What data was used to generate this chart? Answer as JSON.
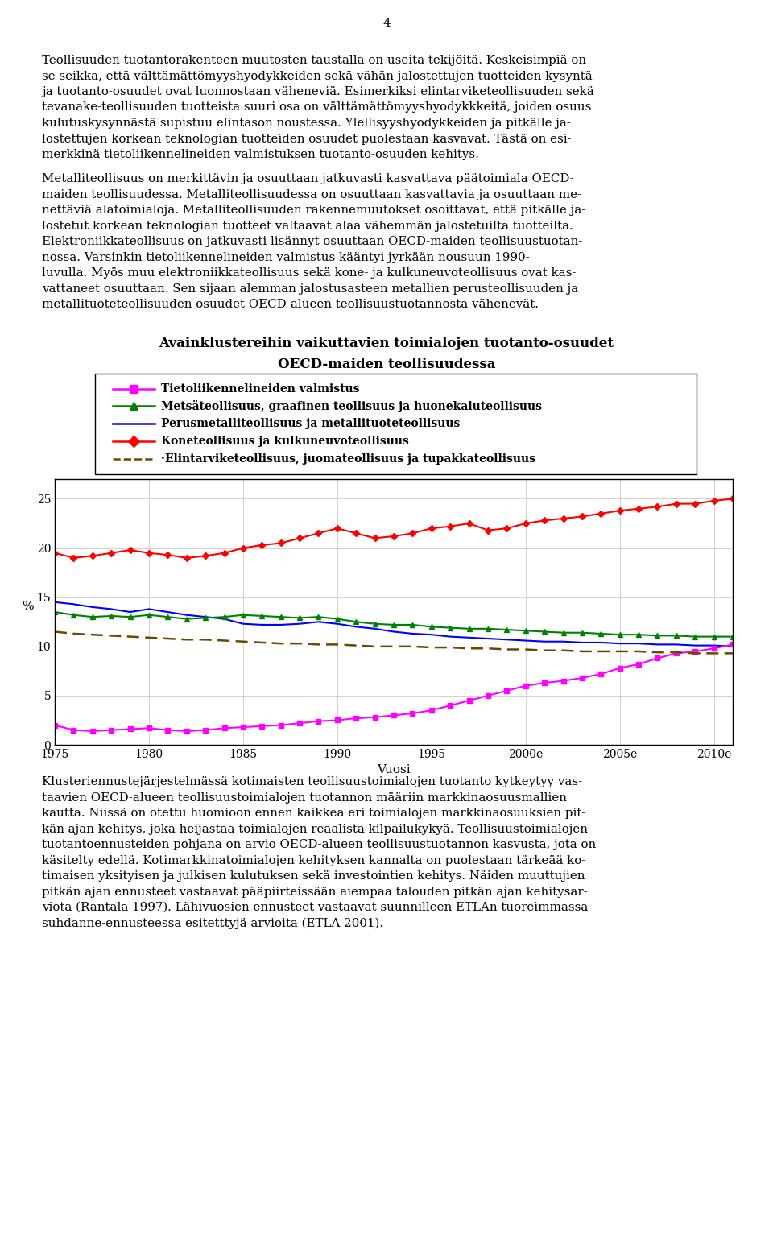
{
  "page_number": "4",
  "para1_lines": [
    "Teollisuuden tuotantorakenteen muutosten taustalla on useita tekijöitä. Keskeisimpiä on",
    "se seikka, että välttämättömyyshyodykkeiden sekä vähän jalostettujen tuotteiden kysyntä-",
    "ja tuotanto-osuudet ovat luonnostaan väheneviä. Esimerkiksi elintarviketeollisuuden sekä",
    "tevanake-teollisuuden tuotteista suuri osa on välttämättömyyshyodykkkeitä, joiden osuus",
    "kulutuskysynnästä supistuu elintason noustessa. Ylellisyyshyodykkeiden ja pitkälle ja-",
    "lostettujen korkean teknologian tuotteiden osuudet puolestaan kasvavat. Tästä on esi-",
    "merkkinä tietoliikennelineiden valmistuksen tuotanto-osuuden kehitys."
  ],
  "para2_lines": [
    "Metalliteollisuus on merkittävin ja osuuttaan jatkuvasti kasvattava päätoimiala OECD-",
    "maiden teollisuudessa. Metalliteollisuudessa on osuuttaan kasvattavia ja osuuttaan me-",
    "nettäviä alatoimialoja. Metalliteollisuuden rakennemuutokset osoittavat, että pitkälle ja-",
    "lostetut korkean teknologian tuotteet valtaavat alaa vähemmän jalostetuilta tuotteilta.",
    "Elektroniikkateollisuus on jatkuvasti lisännyt osuuttaan OECD-maiden teollisuustuotan-",
    "nossa. Varsinkin tietoliikennelineiden valmistus kääntyi jyrkään nousuun 1990-",
    "luvulla. Myös muu elektroniikkateollisuus sekä kone- ja kulkuneuvoteollisuus ovat kas-",
    "vattaneet osuuttaan. Sen sijaan alemman jalostusasteen metallien perusteollisuuden ja",
    "metallituoteteollisuuden osuudet OECD-alueen teollisuustuotannosta vähenevät."
  ],
  "chart_title_line1": "Avainklustereihin vaikuttavien toimialojen tuotanto-osuudet",
  "chart_title_line2": "OECD-maiden teollisuudessa",
  "legend_items": [
    {
      "label": "Tietoliikennelineiden valmistus",
      "color": "#FF00FF",
      "ls": "-",
      "marker": "s"
    },
    {
      "label": "Metsäteollisuus, graafinen teollisuus ja huonekaluteollisuus",
      "color": "#008000",
      "ls": "-",
      "marker": "^"
    },
    {
      "label": "Perusmetalliteollisuus ja metallituoteteollisuus",
      "color": "#0000FF",
      "ls": "-",
      "marker": null
    },
    {
      "label": "Koneteollisuus ja kulkuneuvoteollisuus",
      "color": "#FF0000",
      "ls": "-",
      "marker": "D"
    },
    {
      "label": "·Elintarviketeollisuus, juomateollisuus ja tupakkateollisuus",
      "color": "#6B4800",
      "ls": "--",
      "marker": null
    }
  ],
  "years": [
    1975,
    1976,
    1977,
    1978,
    1979,
    1980,
    1981,
    1982,
    1983,
    1984,
    1985,
    1986,
    1987,
    1988,
    1989,
    1990,
    1991,
    1992,
    1993,
    1994,
    1995,
    1996,
    1997,
    1998,
    1999,
    2000,
    2001,
    2002,
    2003,
    2004,
    2005,
    2006,
    2007,
    2008,
    2009,
    2010,
    2011
  ],
  "tieto": [
    2.0,
    1.5,
    1.4,
    1.5,
    1.6,
    1.7,
    1.5,
    1.4,
    1.5,
    1.7,
    1.8,
    1.9,
    2.0,
    2.2,
    2.4,
    2.5,
    2.7,
    2.8,
    3.0,
    3.2,
    3.5,
    4.0,
    4.5,
    5.0,
    5.5,
    6.0,
    6.3,
    6.5,
    6.8,
    7.2,
    7.8,
    8.2,
    8.8,
    9.3,
    9.5,
    9.8,
    10.2
  ],
  "metsa": [
    13.5,
    13.2,
    13.0,
    13.1,
    13.0,
    13.2,
    13.0,
    12.8,
    12.9,
    13.0,
    13.2,
    13.1,
    13.0,
    12.9,
    13.0,
    12.8,
    12.5,
    12.3,
    12.2,
    12.2,
    12.0,
    11.9,
    11.8,
    11.8,
    11.7,
    11.6,
    11.5,
    11.4,
    11.4,
    11.3,
    11.2,
    11.2,
    11.1,
    11.1,
    11.0,
    11.0,
    11.0
  ],
  "perus": [
    14.5,
    14.3,
    14.0,
    13.8,
    13.5,
    13.8,
    13.5,
    13.2,
    13.0,
    12.8,
    12.3,
    12.2,
    12.2,
    12.3,
    12.5,
    12.3,
    12.0,
    11.8,
    11.5,
    11.3,
    11.2,
    11.0,
    10.9,
    10.8,
    10.7,
    10.6,
    10.5,
    10.5,
    10.4,
    10.4,
    10.3,
    10.3,
    10.2,
    10.2,
    10.1,
    10.1,
    10.0
  ],
  "kone": [
    19.5,
    19.0,
    19.2,
    19.5,
    19.8,
    19.5,
    19.3,
    19.0,
    19.2,
    19.5,
    20.0,
    20.3,
    20.5,
    21.0,
    21.5,
    22.0,
    21.5,
    21.0,
    21.2,
    21.5,
    22.0,
    22.2,
    22.5,
    21.8,
    22.0,
    22.5,
    22.8,
    23.0,
    23.2,
    23.5,
    23.8,
    24.0,
    24.2,
    24.5,
    24.5,
    24.8,
    25.0
  ],
  "elinta": [
    11.5,
    11.3,
    11.2,
    11.1,
    11.0,
    10.9,
    10.8,
    10.7,
    10.7,
    10.6,
    10.5,
    10.4,
    10.3,
    10.3,
    10.2,
    10.2,
    10.1,
    10.0,
    10.0,
    10.0,
    9.9,
    9.9,
    9.8,
    9.8,
    9.7,
    9.7,
    9.6,
    9.6,
    9.5,
    9.5,
    9.5,
    9.5,
    9.4,
    9.4,
    9.3,
    9.3,
    9.3
  ],
  "xlabel": "Vuosi",
  "ylabel": "%",
  "yticks": [
    0,
    5,
    10,
    15,
    20,
    25
  ],
  "xtick_labels": [
    "1975",
    "1980",
    "1985",
    "1990",
    "1995",
    "2000e",
    "2005e",
    "2010e"
  ],
  "xtick_positions": [
    1975,
    1980,
    1985,
    1990,
    1995,
    2000,
    2005,
    2010
  ],
  "para3_lines": [
    "Klusteriennustejärjestelmässä kotimaisten teollisuustoimialojen tuotanto kytkeytyy vas-",
    "taavien OECD-alueen teollisuustoimialojen tuotannon määriin markkinaosuusmallien",
    "kautta. Niissä on otettu huomioon ennen kaikkea eri toimialojen markkinaosuuksien pit-",
    "kän ajan kehitys, joka heijastaa toimialojen reaalista kilpailukykyä. Teollisuustoimialojen",
    "tuotantoennusteiden pohjana on arvio OECD-alueen teollisuustuotannon kasvusta, jota on",
    "käsitelty edellä. Kotimarkkinatoimialojen kehityksen kannalta on puolestaan tärkeää ko-",
    "timaisen yksityisen ja julkisen kulutuksen sekä investointien kehitys. Näiden muuttujien",
    "pitkän ajan ennusteet vastaavat pääpiirteissään aiempaa talouden pitkän ajan kehitysar-",
    "viota (Rantala 1997). Lähivuosien ennusteet vastaavat suunnilleen ETLAn tuoreimmassa",
    "suhdanne-ennusteessa esitetttyjä arvioita (ETLA 2001)."
  ]
}
